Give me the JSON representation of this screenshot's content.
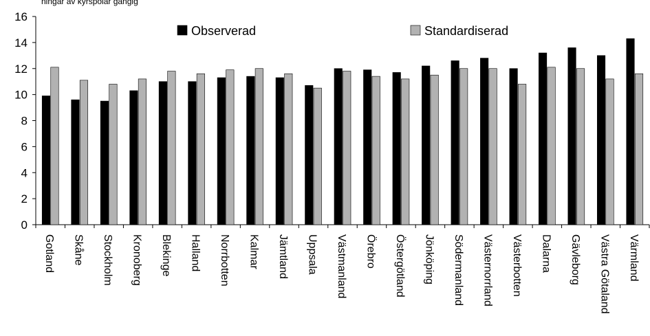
{
  "chart_data": {
    "type": "bar",
    "title": "",
    "subtitle": "ningar av kyrspolar gängig",
    "xlabel": "",
    "ylabel": "",
    "ylim": [
      0,
      16
    ],
    "yticks": [
      0,
      2,
      4,
      6,
      8,
      10,
      12,
      14,
      16
    ],
    "grid": false,
    "legend_position": "top",
    "categories": [
      "Gotland",
      "Skåne",
      "Stockholm",
      "Kronoberg",
      "Blekinge",
      "Halland",
      "Norrbotten",
      "Kalmar",
      "Jämtland",
      "Uppsala",
      "Västmanland",
      "Örebro",
      "Östergötland",
      "Jönköping",
      "Södermanland",
      "Västernorrland",
      "Västerbotten",
      "Dalarna",
      "Gävleborg",
      "Västra Götaland",
      "Värmland"
    ],
    "series": [
      {
        "name": "Observerad",
        "color": "#000000",
        "values": [
          9.9,
          9.6,
          9.5,
          10.3,
          11.0,
          11.0,
          11.3,
          11.4,
          11.3,
          10.7,
          12.0,
          11.9,
          11.7,
          12.2,
          12.6,
          12.8,
          12.0,
          13.2,
          13.6,
          13.0,
          14.3
        ]
      },
      {
        "name": "Standardiserad",
        "color": "#b2b2b2",
        "values": [
          12.1,
          11.1,
          10.8,
          11.2,
          11.8,
          11.6,
          11.9,
          12.0,
          11.6,
          10.5,
          11.8,
          11.4,
          11.2,
          11.5,
          12.0,
          12.0,
          10.8,
          12.1,
          12.0,
          11.2,
          11.6
        ]
      }
    ]
  }
}
